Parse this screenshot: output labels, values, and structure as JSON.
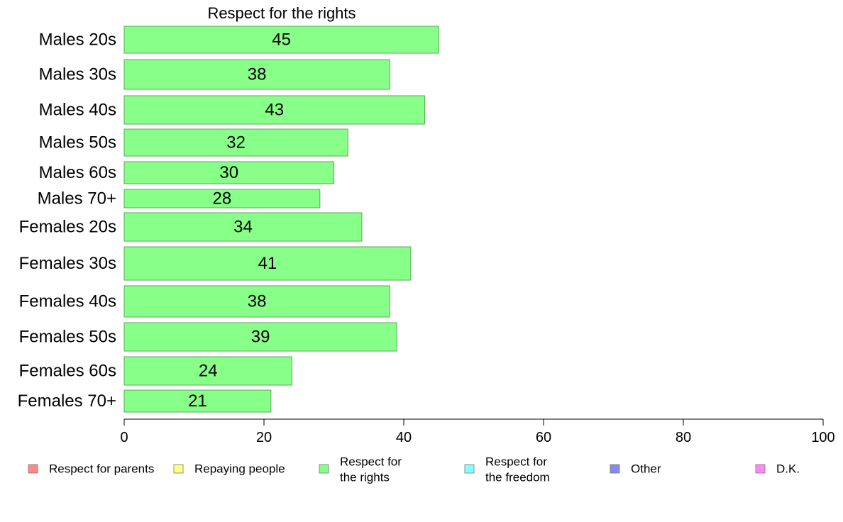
{
  "chart_data": {
    "type": "bar",
    "orientation": "horizontal",
    "title": "Respect for the rights",
    "categories": [
      "Males 20s",
      "Males 30s",
      "Males 40s",
      "Males 50s",
      "Males 60s",
      "Males 70+",
      "Females 20s",
      "Females 30s",
      "Females 40s",
      "Females 50s",
      "Females 60s",
      "Females 70+"
    ],
    "values": [
      45,
      38,
      43,
      32,
      30,
      28,
      34,
      41,
      38,
      39,
      24,
      21
    ],
    "xlim": [
      0,
      100
    ],
    "xticks": [
      "0",
      "20",
      "40",
      "60",
      "80",
      "100"
    ],
    "grid": false,
    "bar_color": "#88ff88",
    "bar_edge_color": "#5aa85a",
    "legend_position": "bottom",
    "legend": [
      {
        "lines": [
          "Respect for parents"
        ],
        "color": "#ff8888"
      },
      {
        "lines": [
          "Repaying people"
        ],
        "color": "#ffff88"
      },
      {
        "lines": [
          "Respect for",
          "the rights"
        ],
        "color": "#88ff88"
      },
      {
        "lines": [
          "Respect for",
          "the freedom"
        ],
        "color": "#88ffff"
      },
      {
        "lines": [
          "Other"
        ],
        "color": "#8888ee"
      },
      {
        "lines": [
          "D.K."
        ],
        "color": "#ff88ff"
      }
    ]
  }
}
